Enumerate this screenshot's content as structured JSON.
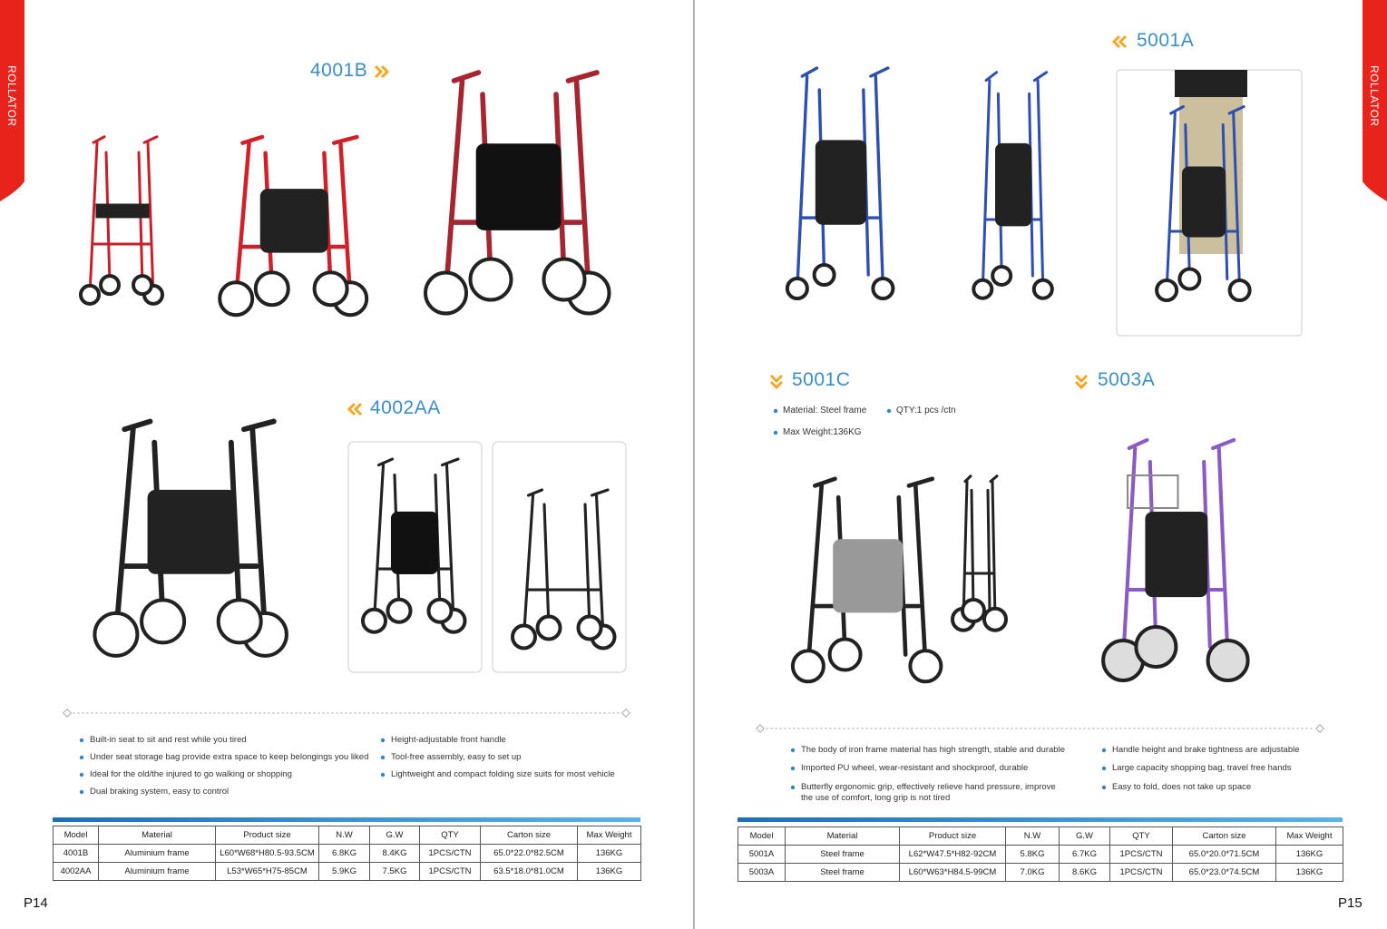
{
  "left_page": {
    "side_tab": "ROLLATOR",
    "products": [
      {
        "model": "4001B"
      },
      {
        "model": "4002AA"
      }
    ],
    "features": [
      "Built-in seat to sit and rest while you tired",
      "Under seat storage bag provide extra space to keep belongings you liked",
      "Ideal for the old/the injured to go walking or shopping",
      "Dual braking system, easy to control",
      "Height-adjustable front handle",
      "Tool-free assembly, easy to set up",
      "Lightweight and compact folding size suits for most vehicle"
    ],
    "table": {
      "header": [
        "Model",
        "Material",
        "Product size",
        "N.W",
        "G.W",
        "QTY",
        "Carton size",
        "Max Weight"
      ],
      "rows": [
        [
          "4001B",
          "Aluminium frame",
          "L60*W68*H80.5-93.5CM",
          "6.8KG",
          "8.4KG",
          "1PCS/CTN",
          "65.0*22.0*82.5CM",
          "136KG"
        ],
        [
          "4002AA",
          "Aluminium frame",
          "L53*W65*H75-85CM",
          "5.9KG",
          "7.5KG",
          "1PCS/CTN",
          "63.5*18.0*81.0CM",
          "136KG"
        ]
      ]
    },
    "page_number": "P14"
  },
  "right_page": {
    "side_tab": "ROLLATOR",
    "products": [
      {
        "model": "5001A"
      },
      {
        "model": "5001C",
        "specs": [
          "Material: Steel frame",
          "QTY:1 pcs /ctn",
          "Max Weight:136KG"
        ]
      },
      {
        "model": "5003A"
      }
    ],
    "features": [
      "The body of iron frame material has high strength, stable and durable",
      "Imported PU wheel, wear-resistant and shockproof, durable",
      "Butterfly ergonomic grip, effectively relieve hand pressure, improve the use of comfort, long grip is not tired",
      "Handle height and brake tightness are adjustable",
      "Large capacity shopping bag, travel free hands",
      "Easy to fold, does not take up space"
    ],
    "table": {
      "header": [
        "Model",
        "Material",
        "Product size",
        "N.W",
        "G.W",
        "QTY",
        "Carton size",
        "Max Weight"
      ],
      "rows": [
        [
          "5001A",
          "Steel frame",
          "L62*W47.5*H82-92CM",
          "5.8KG",
          "6.7KG",
          "1PCS/CTN",
          "65.0*20.0*71.5CM",
          "136KG"
        ],
        [
          "5003A",
          "Steel frame",
          "L60*W63*H84.5-99CM",
          "7.0KG",
          "8.6KG",
          "1PCS/CTN",
          "65.0*23.0*74.5CM",
          "136KG"
        ]
      ]
    },
    "page_number": "P15"
  }
}
